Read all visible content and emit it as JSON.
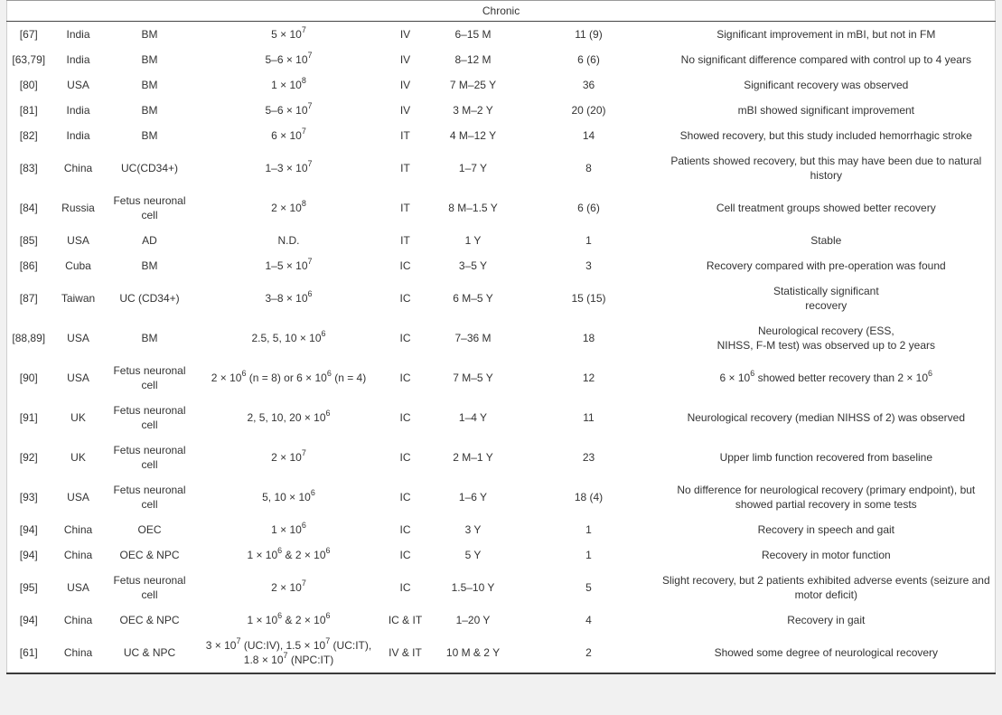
{
  "table": {
    "section_title": "Chronic",
    "rows": [
      {
        "ref": "[67]",
        "country": "India",
        "cell_type": "BM",
        "dose": "5 × 10^7",
        "route": "IV",
        "time": "6–15 M",
        "n": "11 (9)",
        "outcome": "Significant improvement in mBI, but not in FM"
      },
      {
        "ref": "[63,79]",
        "country": "India",
        "cell_type": "BM",
        "dose": "5–6 × 10^7",
        "route": "IV",
        "time": "8–12 M",
        "n": "6 (6)",
        "outcome": "No significant difference compared with control up to 4 years"
      },
      {
        "ref": "[80]",
        "country": "USA",
        "cell_type": "BM",
        "dose": "1 × 10^8",
        "route": "IV",
        "time": "7 M–25 Y",
        "n": "36",
        "outcome": "Significant recovery was observed"
      },
      {
        "ref": "[81]",
        "country": "India",
        "cell_type": "BM",
        "dose": "5–6 × 10^7",
        "route": "IV",
        "time": "3 M–2 Y",
        "n": "20 (20)",
        "outcome": "mBI showed significant improvement"
      },
      {
        "ref": "[82]",
        "country": "India",
        "cell_type": "BM",
        "dose": "6 × 10^7",
        "route": "IT",
        "time": "4 M–12 Y",
        "n": "14",
        "outcome": "Showed recovery, but this study included hemorrhagic stroke"
      },
      {
        "ref": "[83]",
        "country": "China",
        "cell_type": "UC(CD34+)",
        "dose": "1–3 × 10^7",
        "route": "IT",
        "time": "1–7 Y",
        "n": "8",
        "outcome": "Patients showed recovery, but this may have been due to natural\nhistory"
      },
      {
        "ref": "[84]",
        "country": "Russia",
        "cell_type": "Fetus neuronal cell",
        "dose": "2 × 10^8",
        "route": "IT",
        "time": "8 M–1.5 Y",
        "n": "6 (6)",
        "outcome": "Cell treatment groups showed better recovery"
      },
      {
        "ref": "[85]",
        "country": "USA",
        "cell_type": "AD",
        "dose": "N.D.",
        "route": "IT",
        "time": "1 Y",
        "n": "1",
        "outcome": "Stable"
      },
      {
        "ref": "[86]",
        "country": "Cuba",
        "cell_type": "BM",
        "dose": "1–5 × 10^7",
        "route": "IC",
        "time": "3–5 Y",
        "n": "3",
        "outcome": "Recovery compared with pre-operation was found"
      },
      {
        "ref": "[87]",
        "country": "Taiwan",
        "cell_type": "UC (CD34+)",
        "dose": "3–8 × 10^6",
        "route": "IC",
        "time": "6 M–5 Y",
        "n": "15 (15)",
        "outcome": "Statistically significant\nrecovery"
      },
      {
        "ref": "[88,89]",
        "country": "USA",
        "cell_type": "BM",
        "dose": "2.5, 5, 10 × 10^6",
        "route": "IC",
        "time": "7–36 M",
        "n": "18",
        "outcome": "Neurological recovery (ESS,\nNIHSS, F-M test) was observed up to 2 years"
      },
      {
        "ref": "[90]",
        "country": "USA",
        "cell_type": "Fetus neuronal cell",
        "dose": "2 × 10^6 (n = 8) or 6 × 10^6 (n = 4)",
        "route": "IC",
        "time": "7 M–5 Y",
        "n": "12",
        "outcome": "6 × 10^6 showed better recovery than 2 × 10^6"
      },
      {
        "ref": "[91]",
        "country": "UK",
        "cell_type": "Fetus neuronal cell",
        "dose": "2, 5, 10, 20 × 10^6",
        "route": "IC",
        "time": "1–4 Y",
        "n": "11",
        "outcome": "Neurological recovery (median NIHSS of 2) was observed"
      },
      {
        "ref": "[92]",
        "country": "UK",
        "cell_type": "Fetus neuronal cell",
        "dose": "2 × 10^7",
        "route": "IC",
        "time": "2 M–1 Y",
        "n": "23",
        "outcome": "Upper limb function recovered from baseline"
      },
      {
        "ref": "[93]",
        "country": "USA",
        "cell_type": "Fetus neuronal cell",
        "dose": "5, 10 × 10^6",
        "route": "IC",
        "time": "1–6 Y",
        "n": "18 (4)",
        "outcome": "No difference for neurological recovery (primary endpoint), but\nshowed partial recovery in some tests"
      },
      {
        "ref": "[94]",
        "country": "China",
        "cell_type": "OEC",
        "dose": "1 × 10^6",
        "route": "IC",
        "time": "3 Y",
        "n": "1",
        "outcome": "Recovery in speech and gait"
      },
      {
        "ref": "[94]",
        "country": "China",
        "cell_type": "OEC & NPC",
        "dose": "1 × 10^6 & 2 × 10^6",
        "route": "IC",
        "time": "5 Y",
        "n": "1",
        "outcome": "Recovery in motor function"
      },
      {
        "ref": "[95]",
        "country": "USA",
        "cell_type": "Fetus neuronal cell",
        "dose": "2 × 10^7",
        "route": "IC",
        "time": "1.5–10 Y",
        "n": "5",
        "outcome": "Slight recovery, but 2 patients exhibited adverse events (seizure and\nmotor deficit)"
      },
      {
        "ref": "[94]",
        "country": "China",
        "cell_type": "OEC & NPC",
        "dose": "1 × 10^6 & 2 × 10^6",
        "route": "IC & IT",
        "time": "1–20 Y",
        "n": "4",
        "outcome": "Recovery in gait"
      },
      {
        "ref": "[61]",
        "country": "China",
        "cell_type": "UC & NPC",
        "dose": "3 × 10^7 (UC:IV), 1.5 × 10^7 (UC:IT),\n1.8 × 10^7 (NPC:IT)",
        "route": "IV & IT",
        "time": "10 M & 2 Y",
        "n": "2",
        "outcome": "Showed some degree of neurological recovery"
      }
    ]
  },
  "colors": {
    "text": "#333333",
    "dark_rule": "#444444",
    "light_border": "#cfcfcf",
    "page_background": "#f1f1f1",
    "table_background": "#ffffff"
  }
}
